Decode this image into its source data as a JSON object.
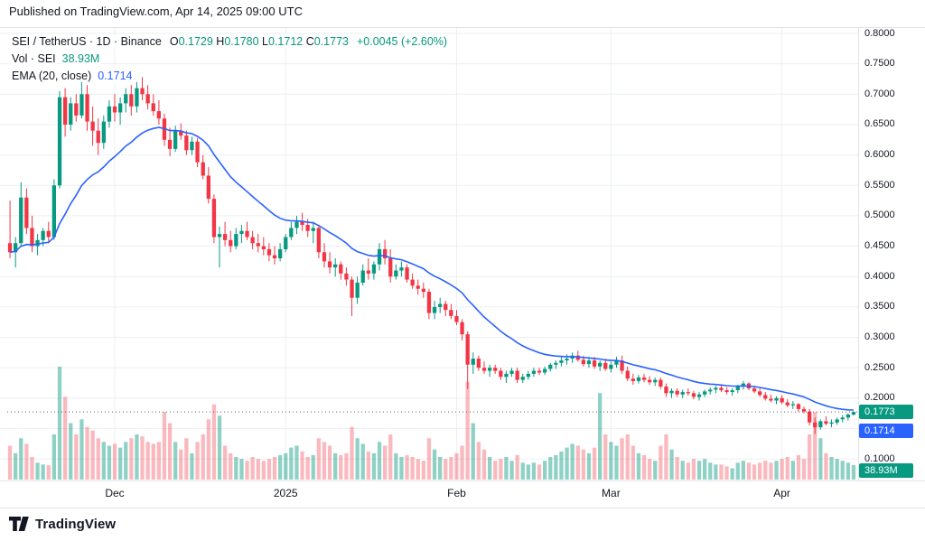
{
  "header": {
    "published": "Published on TradingView.com, Apr 14, 2025 09:00 UTC"
  },
  "legend": {
    "symbol": "SEI / TetherUS · 1D · Binance",
    "o_label": "O",
    "o_value": "0.1729",
    "h_label": "H",
    "h_value": "0.1780",
    "l_label": "L",
    "l_value": "0.1712",
    "c_label": "C",
    "c_value": "0.1773",
    "change": "+0.0045 (+2.60%)",
    "vol_label": "Vol · SEI",
    "vol_value": "38.93M",
    "ema_label": "EMA (20, close)",
    "ema_value": "0.1714"
  },
  "badges": {
    "price": "0.1773",
    "ema": "0.1714",
    "volume": "38.93M"
  },
  "y_axis": {
    "visible_labels": [
      "0.8000",
      "0.7500",
      "0.7000",
      "0.6500",
      "0.6000",
      "0.5500",
      "0.5000",
      "0.4500",
      "0.4000",
      "0.3500",
      "0.3000",
      "0.2500",
      "0.2000",
      "0.1000"
    ]
  },
  "x_axis": {
    "labels": [
      {
        "text": "Dec",
        "index": 19
      },
      {
        "text": "2025",
        "index": 50
      },
      {
        "text": "Feb",
        "index": 81
      },
      {
        "text": "Mar",
        "index": 109
      },
      {
        "text": "Apr",
        "index": 140
      }
    ]
  },
  "footer": {
    "brand": "TradingView"
  },
  "colors": {
    "up": "#089981",
    "down": "#f23645",
    "ema": "#2962ff",
    "grid": "#eceff2",
    "axis_text": "#131722",
    "vol_up": "rgba(8,153,129,0.45)",
    "vol_down": "rgba(242,54,69,0.35)",
    "price_line": "#56606b"
  },
  "chart_data": {
    "type": "candlestick",
    "title": "SEI / TetherUS · 1D · Binance",
    "interval": "1D",
    "exchange": "Binance",
    "ylim": [
      0.1,
      0.8
    ],
    "grid_step": 0.05,
    "current_price": 0.1773,
    "open": 0.1729,
    "high": 0.178,
    "low": 0.1712,
    "close": 0.1773,
    "change": 0.0045,
    "change_pct": 2.6,
    "ema_period": 20,
    "ema_last": 0.1714,
    "volume_last_label": "38.93M",
    "volume_scale_max": 300,
    "candles_format": [
      "open",
      "high",
      "low",
      "close",
      "volume_millions"
    ],
    "candles": [
      [
        0.455,
        0.525,
        0.43,
        0.44,
        90
      ],
      [
        0.44,
        0.465,
        0.415,
        0.455,
        70
      ],
      [
        0.455,
        0.555,
        0.45,
        0.53,
        110
      ],
      [
        0.53,
        0.545,
        0.47,
        0.48,
        95
      ],
      [
        0.48,
        0.5,
        0.44,
        0.45,
        60
      ],
      [
        0.45,
        0.47,
        0.435,
        0.46,
        45
      ],
      [
        0.46,
        0.48,
        0.45,
        0.475,
        40
      ],
      [
        0.475,
        0.49,
        0.455,
        0.465,
        38
      ],
      [
        0.465,
        0.56,
        0.46,
        0.55,
        120
      ],
      [
        0.55,
        0.705,
        0.545,
        0.695,
        300
      ],
      [
        0.695,
        0.71,
        0.63,
        0.65,
        220
      ],
      [
        0.65,
        0.695,
        0.64,
        0.685,
        150
      ],
      [
        0.685,
        0.7,
        0.655,
        0.665,
        120
      ],
      [
        0.665,
        0.72,
        0.66,
        0.7,
        160
      ],
      [
        0.7,
        0.715,
        0.64,
        0.655,
        140
      ],
      [
        0.655,
        0.68,
        0.615,
        0.64,
        130
      ],
      [
        0.64,
        0.66,
        0.6,
        0.62,
        110
      ],
      [
        0.62,
        0.665,
        0.61,
        0.655,
        100
      ],
      [
        0.655,
        0.69,
        0.645,
        0.68,
        90
      ],
      [
        0.68,
        0.7,
        0.655,
        0.67,
        95
      ],
      [
        0.67,
        0.695,
        0.65,
        0.685,
        85
      ],
      [
        0.685,
        0.71,
        0.67,
        0.7,
        100
      ],
      [
        0.7,
        0.715,
        0.665,
        0.68,
        110
      ],
      [
        0.68,
        0.72,
        0.67,
        0.71,
        120
      ],
      [
        0.71,
        0.728,
        0.69,
        0.7,
        115
      ],
      [
        0.7,
        0.715,
        0.675,
        0.685,
        100
      ],
      [
        0.685,
        0.7,
        0.665,
        0.672,
        95
      ],
      [
        0.672,
        0.69,
        0.65,
        0.66,
        100
      ],
      [
        0.66,
        0.668,
        0.615,
        0.625,
        180
      ],
      [
        0.625,
        0.645,
        0.598,
        0.61,
        150
      ],
      [
        0.61,
        0.648,
        0.605,
        0.64,
        100
      ],
      [
        0.64,
        0.652,
        0.625,
        0.632,
        80
      ],
      [
        0.632,
        0.64,
        0.6,
        0.608,
        110
      ],
      [
        0.608,
        0.63,
        0.6,
        0.622,
        70
      ],
      [
        0.622,
        0.628,
        0.58,
        0.588,
        100
      ],
      [
        0.588,
        0.6,
        0.56,
        0.566,
        120
      ],
      [
        0.566,
        0.58,
        0.52,
        0.528,
        160
      ],
      [
        0.528,
        0.535,
        0.455,
        0.465,
        200
      ],
      [
        0.465,
        0.482,
        0.415,
        0.47,
        170
      ],
      [
        0.47,
        0.49,
        0.45,
        0.46,
        90
      ],
      [
        0.46,
        0.475,
        0.44,
        0.45,
        70
      ],
      [
        0.45,
        0.48,
        0.445,
        0.47,
        60
      ],
      [
        0.47,
        0.485,
        0.455,
        0.475,
        55
      ],
      [
        0.475,
        0.49,
        0.46,
        0.465,
        50
      ],
      [
        0.465,
        0.475,
        0.445,
        0.455,
        60
      ],
      [
        0.455,
        0.47,
        0.44,
        0.45,
        55
      ],
      [
        0.45,
        0.465,
        0.435,
        0.445,
        50
      ],
      [
        0.445,
        0.455,
        0.425,
        0.435,
        55
      ],
      [
        0.435,
        0.45,
        0.42,
        0.43,
        60
      ],
      [
        0.43,
        0.455,
        0.425,
        0.445,
        65
      ],
      [
        0.445,
        0.47,
        0.44,
        0.465,
        70
      ],
      [
        0.465,
        0.49,
        0.46,
        0.48,
        85
      ],
      [
        0.48,
        0.5,
        0.47,
        0.49,
        90
      ],
      [
        0.49,
        0.505,
        0.475,
        0.485,
        75
      ],
      [
        0.485,
        0.495,
        0.465,
        0.475,
        60
      ],
      [
        0.475,
        0.49,
        0.455,
        0.48,
        65
      ],
      [
        0.48,
        0.485,
        0.43,
        0.44,
        110
      ],
      [
        0.44,
        0.455,
        0.415,
        0.425,
        100
      ],
      [
        0.425,
        0.44,
        0.405,
        0.415,
        90
      ],
      [
        0.415,
        0.43,
        0.4,
        0.42,
        70
      ],
      [
        0.42,
        0.425,
        0.395,
        0.405,
        65
      ],
      [
        0.405,
        0.415,
        0.385,
        0.395,
        70
      ],
      [
        0.395,
        0.4,
        0.335,
        0.365,
        140
      ],
      [
        0.365,
        0.4,
        0.355,
        0.39,
        110
      ],
      [
        0.39,
        0.42,
        0.385,
        0.41,
        95
      ],
      [
        0.41,
        0.43,
        0.395,
        0.405,
        75
      ],
      [
        0.405,
        0.425,
        0.395,
        0.42,
        70
      ],
      [
        0.42,
        0.455,
        0.41,
        0.445,
        100
      ],
      [
        0.445,
        0.46,
        0.42,
        0.43,
        90
      ],
      [
        0.43,
        0.445,
        0.39,
        0.4,
        120
      ],
      [
        0.4,
        0.42,
        0.395,
        0.41,
        70
      ],
      [
        0.41,
        0.425,
        0.4,
        0.415,
        60
      ],
      [
        0.415,
        0.42,
        0.39,
        0.395,
        65
      ],
      [
        0.395,
        0.405,
        0.38,
        0.385,
        60
      ],
      [
        0.385,
        0.395,
        0.37,
        0.38,
        55
      ],
      [
        0.38,
        0.39,
        0.365,
        0.375,
        50
      ],
      [
        0.375,
        0.38,
        0.33,
        0.34,
        110
      ],
      [
        0.34,
        0.36,
        0.33,
        0.35,
        80
      ],
      [
        0.35,
        0.365,
        0.34,
        0.355,
        60
      ],
      [
        0.355,
        0.36,
        0.335,
        0.345,
        55
      ],
      [
        0.345,
        0.355,
        0.33,
        0.335,
        60
      ],
      [
        0.335,
        0.345,
        0.32,
        0.325,
        70
      ],
      [
        0.325,
        0.33,
        0.295,
        0.305,
        90
      ],
      [
        0.305,
        0.31,
        0.215,
        0.255,
        260
      ],
      [
        0.255,
        0.275,
        0.24,
        0.265,
        150
      ],
      [
        0.265,
        0.27,
        0.245,
        0.25,
        100
      ],
      [
        0.25,
        0.26,
        0.24,
        0.245,
        80
      ],
      [
        0.245,
        0.255,
        0.235,
        0.25,
        60
      ],
      [
        0.25,
        0.255,
        0.24,
        0.245,
        50
      ],
      [
        0.245,
        0.25,
        0.23,
        0.235,
        55
      ],
      [
        0.235,
        0.245,
        0.225,
        0.24,
        60
      ],
      [
        0.24,
        0.25,
        0.235,
        0.245,
        50
      ],
      [
        0.245,
        0.25,
        0.225,
        0.23,
        65
      ],
      [
        0.23,
        0.24,
        0.225,
        0.235,
        45
      ],
      [
        0.235,
        0.245,
        0.23,
        0.24,
        40
      ],
      [
        0.24,
        0.25,
        0.235,
        0.245,
        45
      ],
      [
        0.245,
        0.25,
        0.238,
        0.242,
        40
      ],
      [
        0.242,
        0.252,
        0.238,
        0.248,
        50
      ],
      [
        0.248,
        0.258,
        0.244,
        0.255,
        60
      ],
      [
        0.255,
        0.262,
        0.248,
        0.258,
        65
      ],
      [
        0.258,
        0.268,
        0.252,
        0.262,
        75
      ],
      [
        0.262,
        0.272,
        0.255,
        0.265,
        85
      ],
      [
        0.265,
        0.275,
        0.258,
        0.27,
        95
      ],
      [
        0.27,
        0.278,
        0.26,
        0.263,
        90
      ],
      [
        0.263,
        0.27,
        0.252,
        0.256,
        80
      ],
      [
        0.256,
        0.266,
        0.25,
        0.262,
        70
      ],
      [
        0.262,
        0.268,
        0.248,
        0.252,
        85
      ],
      [
        0.252,
        0.262,
        0.245,
        0.258,
        230
      ],
      [
        0.258,
        0.265,
        0.245,
        0.248,
        120
      ],
      [
        0.248,
        0.26,
        0.242,
        0.255,
        100
      ],
      [
        0.255,
        0.268,
        0.25,
        0.262,
        90
      ],
      [
        0.262,
        0.27,
        0.24,
        0.245,
        110
      ],
      [
        0.245,
        0.252,
        0.228,
        0.232,
        120
      ],
      [
        0.232,
        0.24,
        0.222,
        0.228,
        90
      ],
      [
        0.228,
        0.238,
        0.224,
        0.234,
        70
      ],
      [
        0.234,
        0.24,
        0.226,
        0.23,
        65
      ],
      [
        0.23,
        0.236,
        0.222,
        0.226,
        55
      ],
      [
        0.226,
        0.234,
        0.22,
        0.23,
        50
      ],
      [
        0.23,
        0.234,
        0.215,
        0.219,
        90
      ],
      [
        0.219,
        0.224,
        0.202,
        0.208,
        120
      ],
      [
        0.208,
        0.216,
        0.2,
        0.212,
        80
      ],
      [
        0.212,
        0.216,
        0.202,
        0.206,
        60
      ],
      [
        0.206,
        0.214,
        0.2,
        0.21,
        50
      ],
      [
        0.21,
        0.216,
        0.204,
        0.208,
        45
      ],
      [
        0.208,
        0.212,
        0.198,
        0.202,
        55
      ],
      [
        0.202,
        0.21,
        0.196,
        0.206,
        50
      ],
      [
        0.206,
        0.214,
        0.202,
        0.211,
        55
      ],
      [
        0.211,
        0.218,
        0.206,
        0.214,
        45
      ],
      [
        0.214,
        0.22,
        0.208,
        0.217,
        40
      ],
      [
        0.217,
        0.222,
        0.21,
        0.213,
        40
      ],
      [
        0.213,
        0.218,
        0.206,
        0.21,
        35
      ],
      [
        0.21,
        0.216,
        0.204,
        0.213,
        30
      ],
      [
        0.213,
        0.222,
        0.208,
        0.219,
        45
      ],
      [
        0.219,
        0.228,
        0.214,
        0.224,
        50
      ],
      [
        0.224,
        0.226,
        0.213,
        0.216,
        45
      ],
      [
        0.216,
        0.22,
        0.208,
        0.211,
        40
      ],
      [
        0.211,
        0.216,
        0.202,
        0.205,
        45
      ],
      [
        0.205,
        0.21,
        0.196,
        0.199,
        50
      ],
      [
        0.199,
        0.206,
        0.193,
        0.196,
        45
      ],
      [
        0.196,
        0.203,
        0.19,
        0.2,
        50
      ],
      [
        0.2,
        0.205,
        0.19,
        0.193,
        55
      ],
      [
        0.193,
        0.198,
        0.185,
        0.188,
        60
      ],
      [
        0.188,
        0.195,
        0.182,
        0.19,
        50
      ],
      [
        0.19,
        0.192,
        0.178,
        0.182,
        65
      ],
      [
        0.182,
        0.186,
        0.175,
        0.178,
        55
      ],
      [
        0.178,
        0.182,
        0.155,
        0.16,
        120
      ],
      [
        0.16,
        0.168,
        0.141,
        0.152,
        180
      ],
      [
        0.152,
        0.165,
        0.148,
        0.162,
        110
      ],
      [
        0.162,
        0.17,
        0.155,
        0.158,
        70
      ],
      [
        0.158,
        0.165,
        0.152,
        0.16,
        60
      ],
      [
        0.16,
        0.168,
        0.156,
        0.165,
        55
      ],
      [
        0.165,
        0.172,
        0.16,
        0.168,
        50
      ],
      [
        0.168,
        0.175,
        0.163,
        0.1729,
        45
      ],
      [
        0.1729,
        0.178,
        0.1712,
        0.1773,
        38.93
      ]
    ]
  }
}
